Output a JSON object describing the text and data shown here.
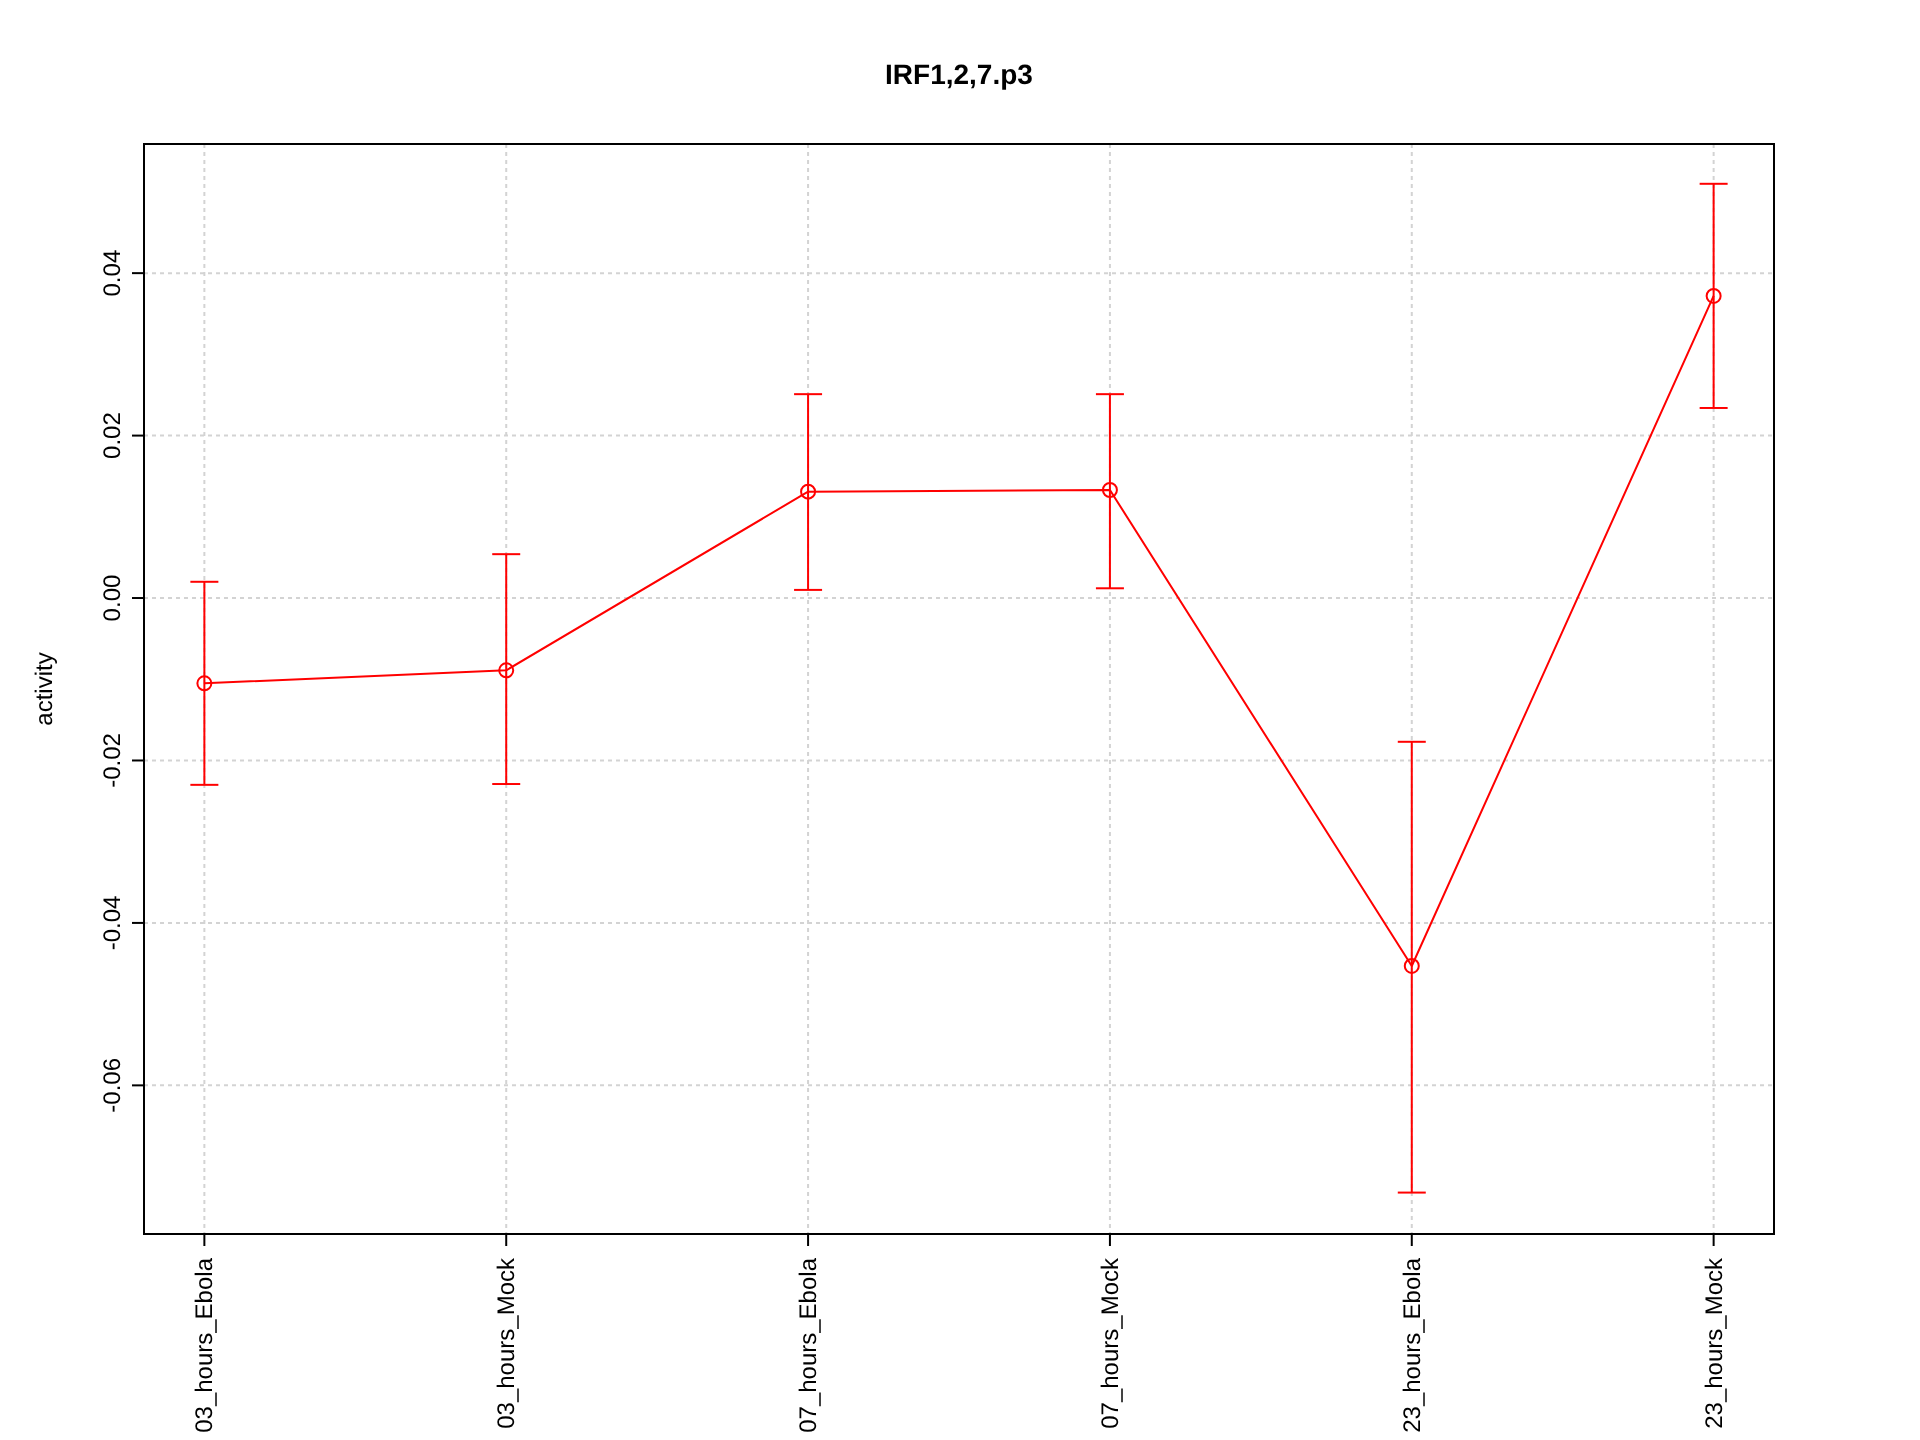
{
  "chart_data": {
    "type": "line",
    "title": "IRF1,2,7.p3",
    "ylabel": "activity",
    "categories": [
      "03_hours_Ebola",
      "03_hours_Mock",
      "07_hours_Ebola",
      "07_hours_Mock",
      "23_hours_Ebola",
      "23_hours_Mock"
    ],
    "series": [
      {
        "color": "#ff0000",
        "values": [
          -0.0105,
          -0.0089,
          0.0131,
          0.0133,
          -0.0453,
          0.0372
        ],
        "errors": [
          [
            -0.023,
            0.002
          ],
          [
            -0.0229,
            0.0054
          ],
          [
            0.001,
            0.0251
          ],
          [
            0.0012,
            0.0251
          ],
          [
            -0.0732,
            -0.0177
          ],
          [
            0.0234,
            0.051
          ]
        ]
      }
    ],
    "ylim": [
      -0.0783,
      0.0559
    ],
    "yticks": [
      {
        "value": -0.06,
        "label": "-0.06"
      },
      {
        "value": -0.04,
        "label": "-0.04"
      },
      {
        "value": -0.02,
        "label": "-0.02"
      },
      {
        "value": 0,
        "label": "0.00"
      },
      {
        "value": 0.02,
        "label": "0.02"
      },
      {
        "value": 0.04,
        "label": "0.04"
      }
    ],
    "grid": true,
    "marker": "circle",
    "line_style": "solid"
  }
}
